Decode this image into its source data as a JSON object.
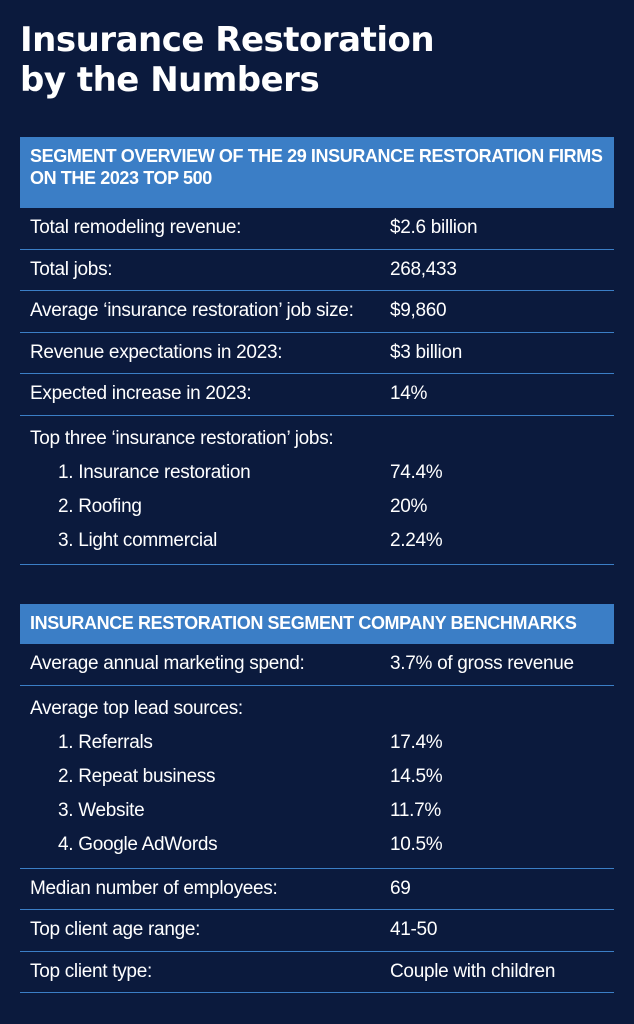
{
  "title": {
    "line1": "Insurance Restoration",
    "line2": "by the Numbers"
  },
  "overview": {
    "header": "SEGMENT OVERVIEW OF THE 29 INSURANCE RESTORATION FIRMS ON THE 2023 TOP 500",
    "rows": [
      {
        "label": "Total remodeling revenue:",
        "value": "$2.6 billion"
      },
      {
        "label": "Total jobs:",
        "value": "268,433"
      },
      {
        "label": "Average ‘insurance restoration’ job size:",
        "value": "$9,860"
      },
      {
        "label": "Revenue expectations in 2023:",
        "value": "$3 billion"
      },
      {
        "label": "Expected increase in 2023:",
        "value": "14%"
      }
    ],
    "top_jobs": {
      "label": "Top three ‘insurance restoration’ jobs:",
      "items": [
        {
          "label": "1. Insurance restoration",
          "value": "74.4%"
        },
        {
          "label": "2. Roofing",
          "value": "20%"
        },
        {
          "label": "3. Light commercial",
          "value": "2.24%"
        }
      ]
    }
  },
  "benchmarks": {
    "header": "INSURANCE RESTORATION SEGMENT COMPANY BENCHMARKS",
    "marketing": {
      "label": "Average annual marketing spend:",
      "value": "3.7% of gross revenue"
    },
    "lead_sources": {
      "label": "Average top lead sources:",
      "items": [
        {
          "label": "1. Referrals",
          "value": "17.4%"
        },
        {
          "label": "2. Repeat business",
          "value": "14.5%"
        },
        {
          "label": "3. Website",
          "value": "11.7%"
        },
        {
          "label": "4. Google AdWords",
          "value": "10.5%"
        }
      ]
    },
    "rows": [
      {
        "label": "Median number of employees:",
        "value": "69"
      },
      {
        "label": "Top client age range:",
        "value": "41-50"
      },
      {
        "label": "Top client type:",
        "value": "Couple with children"
      }
    ]
  }
}
